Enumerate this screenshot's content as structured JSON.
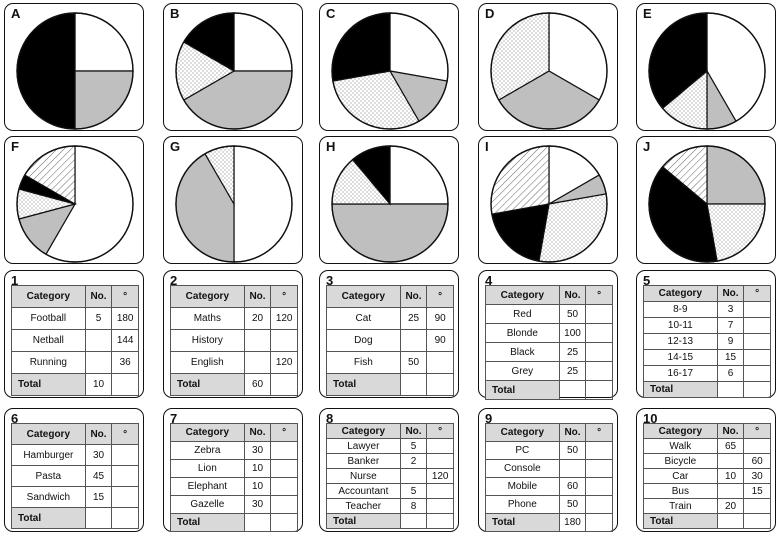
{
  "pies": [
    {
      "label": "A",
      "slices": [
        {
          "start": 0,
          "end": 90,
          "fill": "white"
        },
        {
          "start": 90,
          "end": 180,
          "fill": "grey"
        },
        {
          "start": 180,
          "end": 360,
          "fill": "black"
        }
      ]
    },
    {
      "label": "B",
      "slices": [
        {
          "start": 0,
          "end": 90,
          "fill": "white"
        },
        {
          "start": 90,
          "end": 240,
          "fill": "grey"
        },
        {
          "start": 240,
          "end": 300,
          "fill": "dots"
        },
        {
          "start": 300,
          "end": 360,
          "fill": "black"
        }
      ]
    },
    {
      "label": "C",
      "slices": [
        {
          "start": 0,
          "end": 100,
          "fill": "white"
        },
        {
          "start": 100,
          "end": 150,
          "fill": "grey"
        },
        {
          "start": 150,
          "end": 260,
          "fill": "dots"
        },
        {
          "start": 260,
          "end": 360,
          "fill": "black"
        }
      ]
    },
    {
      "label": "D",
      "slices": [
        {
          "start": 0,
          "end": 120,
          "fill": "white"
        },
        {
          "start": 120,
          "end": 240,
          "fill": "grey"
        },
        {
          "start": 240,
          "end": 360,
          "fill": "dots"
        }
      ]
    },
    {
      "label": "E",
      "slices": [
        {
          "start": 0,
          "end": 150,
          "fill": "white"
        },
        {
          "start": 150,
          "end": 180,
          "fill": "grey"
        },
        {
          "start": 180,
          "end": 230,
          "fill": "dots"
        },
        {
          "start": 230,
          "end": 360,
          "fill": "black"
        }
      ]
    },
    {
      "label": "F",
      "slices": [
        {
          "start": 0,
          "end": 210,
          "fill": "white"
        },
        {
          "start": 210,
          "end": 255,
          "fill": "grey"
        },
        {
          "start": 255,
          "end": 285,
          "fill": "dots"
        },
        {
          "start": 285,
          "end": 300,
          "fill": "black"
        },
        {
          "start": 300,
          "end": 360,
          "fill": "hatch"
        }
      ]
    },
    {
      "label": "G",
      "slices": [
        {
          "start": 0,
          "end": 180,
          "fill": "white"
        },
        {
          "start": 180,
          "end": 330,
          "fill": "grey"
        },
        {
          "start": 330,
          "end": 360,
          "fill": "dots"
        }
      ]
    },
    {
      "label": "H",
      "slices": [
        {
          "start": 0,
          "end": 90,
          "fill": "white"
        },
        {
          "start": 90,
          "end": 270,
          "fill": "grey"
        },
        {
          "start": 270,
          "end": 320,
          "fill": "dots"
        },
        {
          "start": 320,
          "end": 360,
          "fill": "black"
        }
      ]
    },
    {
      "label": "I",
      "slices": [
        {
          "start": 0,
          "end": 60,
          "fill": "white"
        },
        {
          "start": 60,
          "end": 80,
          "fill": "grey"
        },
        {
          "start": 80,
          "end": 190,
          "fill": "dots"
        },
        {
          "start": 190,
          "end": 260,
          "fill": "black"
        },
        {
          "start": 260,
          "end": 360,
          "fill": "hatch"
        }
      ]
    },
    {
      "label": "J",
      "slices": [
        {
          "start": 0,
          "end": 90,
          "fill": "grey"
        },
        {
          "start": 90,
          "end": 170,
          "fill": "dots"
        },
        {
          "start": 170,
          "end": 310,
          "fill": "black"
        },
        {
          "start": 310,
          "end": 360,
          "fill": "hatch"
        }
      ]
    }
  ],
  "tables": [
    {
      "label": "1",
      "headers": [
        "Category",
        "No.",
        "°"
      ],
      "rows": [
        [
          "Football",
          "5",
          "180"
        ],
        [
          "Netball",
          "",
          "144"
        ],
        [
          "Running",
          "",
          "36"
        ]
      ],
      "total": [
        "Total",
        "10",
        ""
      ]
    },
    {
      "label": "2",
      "headers": [
        "Category",
        "No.",
        "°"
      ],
      "rows": [
        [
          "Maths",
          "20",
          "120"
        ],
        [
          "History",
          "",
          ""
        ],
        [
          "English",
          "",
          "120"
        ]
      ],
      "total": [
        "Total",
        "60",
        ""
      ]
    },
    {
      "label": "3",
      "headers": [
        "Category",
        "No.",
        "°"
      ],
      "rows": [
        [
          "Cat",
          "25",
          "90"
        ],
        [
          "Dog",
          "",
          "90"
        ],
        [
          "Fish",
          "50",
          ""
        ]
      ],
      "total": [
        "Total",
        "",
        ""
      ]
    },
    {
      "label": "4",
      "headers": [
        "Category",
        "No.",
        "°"
      ],
      "rows": [
        [
          "Red",
          "50",
          ""
        ],
        [
          "Blonde",
          "100",
          ""
        ],
        [
          "Black",
          "25",
          ""
        ],
        [
          "Grey",
          "25",
          ""
        ]
      ],
      "total": [
        "Total",
        "",
        ""
      ]
    },
    {
      "label": "5",
      "headers": [
        "Category",
        "No.",
        "°"
      ],
      "rows": [
        [
          "8-9",
          "3",
          ""
        ],
        [
          "10-11",
          "7",
          ""
        ],
        [
          "12-13",
          "9",
          ""
        ],
        [
          "14-15",
          "15",
          ""
        ],
        [
          "16-17",
          "6",
          ""
        ]
      ],
      "total": [
        "Total",
        "",
        ""
      ]
    },
    {
      "label": "6",
      "headers": [
        "Category",
        "No.",
        "°"
      ],
      "rows": [
        [
          "Hamburger",
          "30",
          ""
        ],
        [
          "Pasta",
          "45",
          ""
        ],
        [
          "Sandwich",
          "15",
          ""
        ]
      ],
      "total": [
        "Total",
        "",
        ""
      ]
    },
    {
      "label": "7",
      "headers": [
        "Category",
        "No.",
        "°"
      ],
      "rows": [
        [
          "Zebra",
          "30",
          ""
        ],
        [
          "Lion",
          "10",
          ""
        ],
        [
          "Elephant",
          "10",
          ""
        ],
        [
          "Gazelle",
          "30",
          ""
        ]
      ],
      "total": [
        "Total",
        "",
        ""
      ]
    },
    {
      "label": "8",
      "headers": [
        "Category",
        "No.",
        "°"
      ],
      "rows": [
        [
          "Lawyer",
          "5",
          ""
        ],
        [
          "Banker",
          "2",
          ""
        ],
        [
          "Nurse",
          "",
          "120"
        ],
        [
          "Accountant",
          "5",
          ""
        ],
        [
          "Teacher",
          "8",
          ""
        ]
      ],
      "total": [
        "Total",
        "",
        ""
      ]
    },
    {
      "label": "9",
      "headers": [
        "Category",
        "No.",
        "°"
      ],
      "rows": [
        [
          "PC",
          "50",
          ""
        ],
        [
          "Console",
          "",
          ""
        ],
        [
          "Mobile",
          "60",
          ""
        ],
        [
          "Phone",
          "50",
          ""
        ]
      ],
      "total": [
        "Total",
        "180",
        ""
      ]
    },
    {
      "label": "10",
      "headers": [
        "Category",
        "No.",
        "°"
      ],
      "rows": [
        [
          "Walk",
          "65",
          ""
        ],
        [
          "Bicycle",
          "",
          "60"
        ],
        [
          "Car",
          "10",
          "30"
        ],
        [
          "Bus",
          "",
          "15"
        ],
        [
          "Train",
          "20",
          ""
        ]
      ],
      "total": [
        "Total",
        "",
        ""
      ]
    }
  ],
  "colors": {
    "black": "#000000",
    "grey": "#bfbfbf",
    "white": "#ffffff",
    "border": "#111111"
  }
}
